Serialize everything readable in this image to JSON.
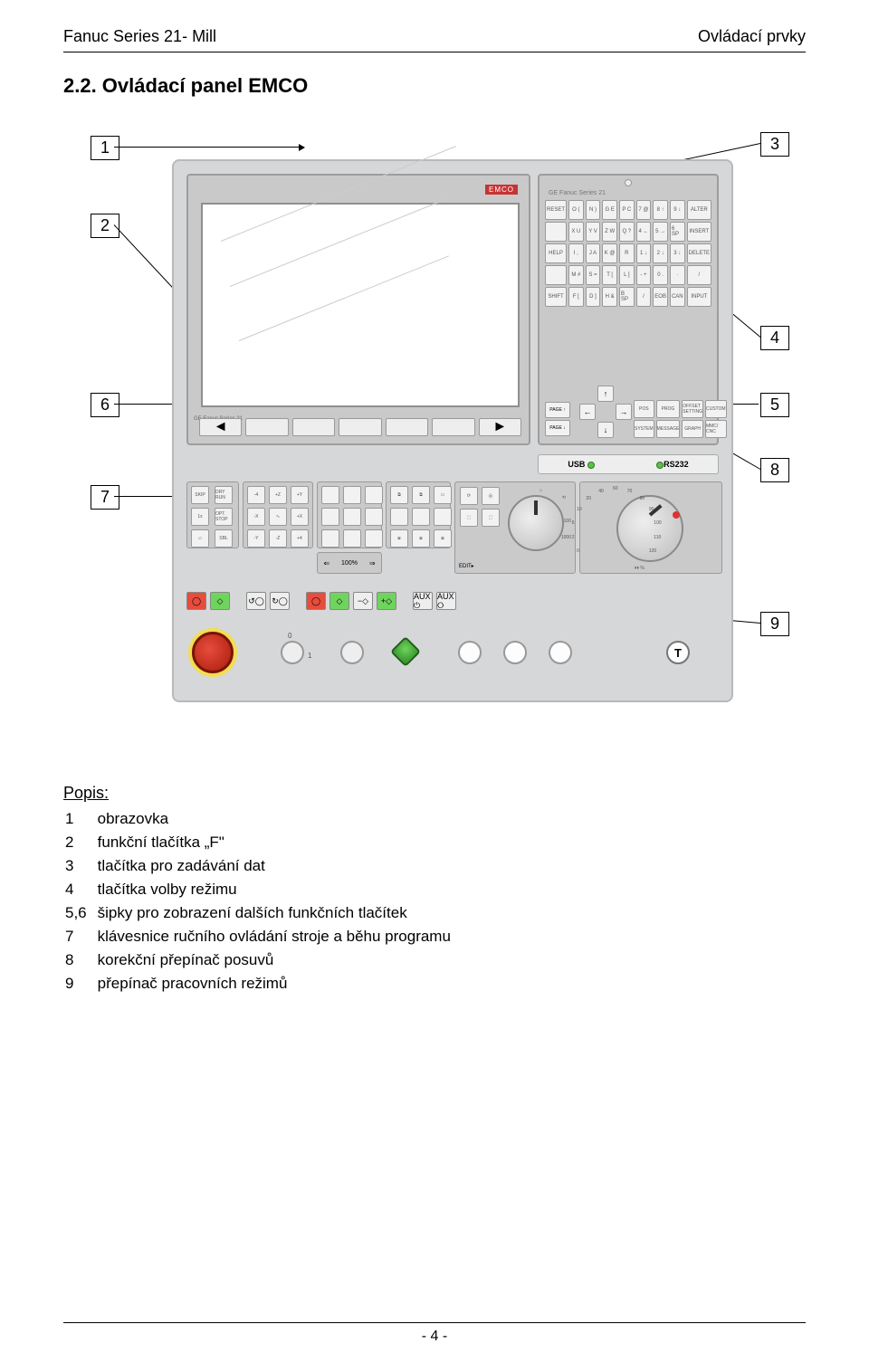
{
  "header": {
    "left": "Fanuc Series 21- Mill",
    "right": "Ovládací prvky"
  },
  "section_title": "2.2.  Ovládací panel EMCO",
  "callouts": {
    "c1": "1",
    "c2": "2",
    "c3": "3",
    "c4": "4",
    "c5": "5",
    "c6": "6",
    "c7": "7",
    "c8": "8",
    "c9": "9"
  },
  "panel": {
    "emco": "EMCO",
    "kbd_title": "GE Fanuc Series 21",
    "ge_label": "GE Fanuc Series 21",
    "keys_row1": [
      "RESET",
      "O (",
      "N )",
      "G E",
      "P C",
      "7 @",
      "8 ↑",
      "9 ↓",
      "ALTER"
    ],
    "keys_row2": [
      "",
      "X U",
      "Y V",
      "Z W",
      "Q ?",
      "4 ←",
      "5 →",
      "6 SP",
      "INSERT"
    ],
    "keys_row3": [
      "HELP",
      "I ,",
      "J A",
      "K @",
      "R",
      "1 ↓",
      "2 ↓",
      "3 ↓",
      "DELETE"
    ],
    "keys_row4": [
      "",
      "M #",
      "S =",
      "T [",
      "L ]",
      "- +",
      "0 .",
      "·",
      "/"
    ],
    "keys_row5": [
      "SHIFT",
      "F [",
      "D ]",
      "H &",
      "B SP",
      "/",
      "EOB",
      "CAN",
      "INPUT"
    ],
    "mode8": [
      "POS",
      "PROG",
      "OFFSET SETTING",
      "CUSTOM",
      "SYSTEM",
      "MESSAGE",
      "GRAPH",
      "MMC/ CNC"
    ],
    "page_up": "PAGE ↑",
    "page_down": "PAGE ↓",
    "usb": "USB",
    "rs232": "RS232",
    "mc_block_a": [
      "SKIP",
      "DRY RUN",
      "1x",
      "OPT. STOP",
      "▱",
      "SBL"
    ],
    "mc_block_b": [
      "-4",
      "+Z",
      "+Y",
      "-X",
      "∿",
      "+X",
      "-Y",
      "-Z",
      "+4"
    ],
    "edit_label": "EDIT▸",
    "feed_ticks": [
      "0",
      "2",
      "6",
      "10",
      "20",
      "40",
      "60",
      "70",
      "80",
      "90",
      "100",
      "110",
      "120"
    ],
    "feed_unit": "⏵⏵ %",
    "pct100": "100%",
    "aux_on": "AUX ⏻",
    "aux_off": "AUX ⭘",
    "zero": "0",
    "one": "1",
    "t": "T"
  },
  "description": {
    "title": "Popis:",
    "rows": [
      [
        "1",
        "obrazovka"
      ],
      [
        "2",
        "funkční tlačítka „F\""
      ],
      [
        "3",
        "tlačítka pro zadávání dat"
      ],
      [
        "4",
        "tlačítka volby režimu"
      ],
      [
        "5,6",
        "šipky pro zobrazení dalších funkčních tlačítek"
      ],
      [
        "7",
        "klávesnice ručního ovládání stroje a běhu programu"
      ],
      [
        "8",
        "korekční přepínač posuvů"
      ],
      [
        "9",
        "přepínač pracovních režimů"
      ]
    ]
  },
  "footer": "- 4 -",
  "colors": {
    "panel_bg": "#d6d7d8",
    "screen_border": "#8f8f8f",
    "green": "#5fbf4b",
    "red": "#e74c3c"
  }
}
